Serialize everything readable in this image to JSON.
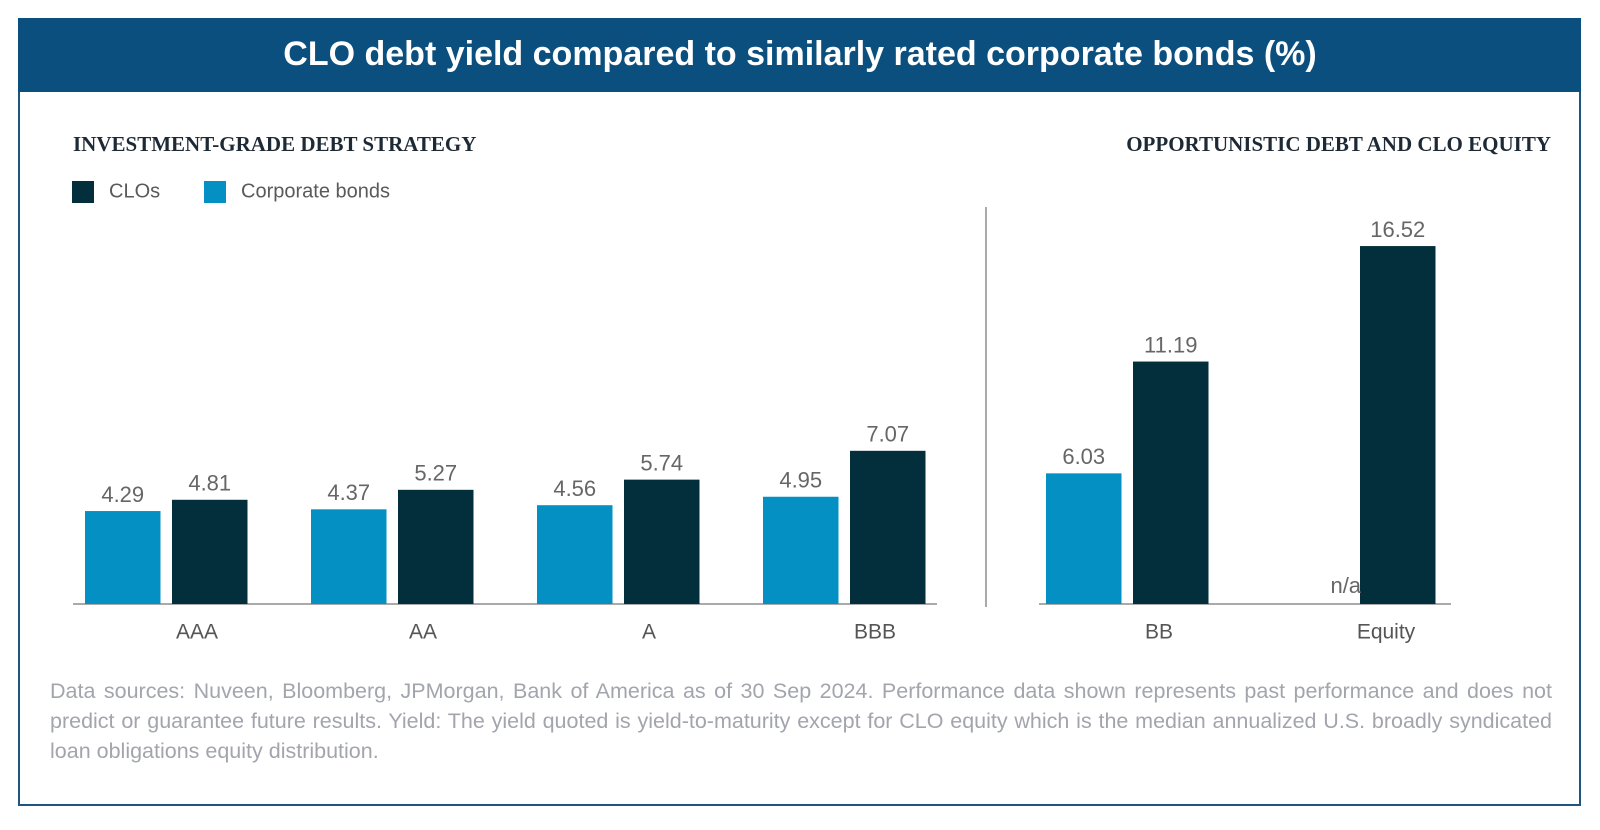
{
  "title": "CLO debt yield compared to similarly rated corporate bonds (%)",
  "note": "Data sources: Nuveen, Bloomberg, JPMorgan, Bank of America as of 30 Sep 2024. Performance data shown represents past performance and does not predict or guarantee future results. Yield: The yield quoted is yield-to-maturity except for CLO equity which is the median annualized U.S. broadly syndicated loan obligations equity distribution.",
  "chart_data": [
    {
      "type": "bar",
      "title": "INVESTMENT-GRADE DEBT STRATEGY",
      "categories": [
        "AAA",
        "AA",
        "A",
        "BBB"
      ],
      "series": [
        {
          "name": "CLOs",
          "color": "#032f3c",
          "values": [
            4.81,
            5.27,
            5.74,
            7.07
          ]
        },
        {
          "name": "Corporate bonds",
          "color": "#0590c3",
          "values": [
            4.29,
            4.37,
            4.56,
            4.95
          ]
        }
      ],
      "ylim": [
        0,
        18
      ],
      "legend": "top-left"
    },
    {
      "type": "bar",
      "title": "OPPORTUNISTIC DEBT AND CLO EQUITY",
      "categories": [
        "BB",
        "Equity"
      ],
      "series": [
        {
          "color": "#032f3c",
          "values": [
            11.19,
            16.52
          ]
        },
        {
          "color": "#0590c3",
          "values": [
            6.03,
            null
          ],
          "value_labels": [
            "6.03",
            "n/a"
          ]
        }
      ],
      "ylim": [
        0,
        18
      ]
    }
  ]
}
